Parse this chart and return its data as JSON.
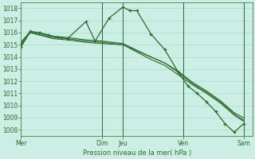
{
  "background_color": "#cceee4",
  "grid_color": "#99ddcc",
  "line_color": "#2d6a2d",
  "ylabel": "Pression niveau de la mer( hPa )",
  "ylim": [
    1007.5,
    1018.5
  ],
  "yticks": [
    1008,
    1009,
    1010,
    1011,
    1012,
    1013,
    1014,
    1015,
    1016,
    1017,
    1018
  ],
  "xtick_labels": [
    "Mer",
    "Dim",
    "Jeu",
    "Ven",
    "Sam"
  ],
  "xtick_positions": [
    0.0,
    0.35,
    0.44,
    0.7,
    0.96
  ],
  "vline_positions": [
    0.35,
    0.44,
    0.7,
    0.96
  ],
  "series": [
    {
      "x": [
        0.0,
        0.04,
        0.08,
        0.12,
        0.16,
        0.2,
        0.28,
        0.32,
        0.38,
        0.44,
        0.47,
        0.5,
        0.56,
        0.62,
        0.68,
        0.72,
        0.76,
        0.8,
        0.84,
        0.88,
        0.92,
        0.96
      ],
      "y": [
        1014.8,
        1016.1,
        1016.0,
        1015.8,
        1015.6,
        1015.5,
        1016.9,
        1015.3,
        1017.2,
        1018.1,
        1017.8,
        1017.8,
        1015.9,
        1014.6,
        1012.7,
        1011.6,
        1011.0,
        1010.3,
        1009.5,
        1008.5,
        1007.8,
        1008.5
      ],
      "marker": "+",
      "lw": 0.9
    },
    {
      "x": [
        0.0,
        0.04,
        0.08,
        0.14,
        0.2,
        0.28,
        0.35,
        0.44,
        0.56,
        0.62,
        0.68,
        0.74,
        0.8,
        0.86,
        0.92,
        0.96
      ],
      "y": [
        1015.1,
        1016.0,
        1015.8,
        1015.6,
        1015.5,
        1015.3,
        1015.2,
        1015.0,
        1014.0,
        1013.5,
        1012.7,
        1011.8,
        1011.1,
        1010.3,
        1009.3,
        1008.8
      ],
      "marker": null,
      "lw": 0.8
    },
    {
      "x": [
        0.0,
        0.04,
        0.08,
        0.14,
        0.2,
        0.28,
        0.35,
        0.44,
        0.56,
        0.62,
        0.68,
        0.74,
        0.8,
        0.86,
        0.92,
        0.96
      ],
      "y": [
        1015.2,
        1016.1,
        1015.9,
        1015.7,
        1015.6,
        1015.4,
        1015.3,
        1015.1,
        1014.0,
        1013.5,
        1012.8,
        1011.9,
        1011.2,
        1010.4,
        1009.4,
        1009.0
      ],
      "marker": null,
      "lw": 0.8
    },
    {
      "x": [
        0.0,
        0.04,
        0.08,
        0.14,
        0.2,
        0.28,
        0.35,
        0.44,
        0.56,
        0.62,
        0.68,
        0.74,
        0.8,
        0.86,
        0.92,
        0.96
      ],
      "y": [
        1015.0,
        1016.0,
        1015.8,
        1015.5,
        1015.4,
        1015.2,
        1015.1,
        1015.0,
        1013.8,
        1013.3,
        1012.5,
        1011.7,
        1011.0,
        1010.2,
        1009.2,
        1008.7
      ],
      "marker": null,
      "lw": 0.8
    }
  ],
  "figsize": [
    3.2,
    2.0
  ],
  "dpi": 100
}
